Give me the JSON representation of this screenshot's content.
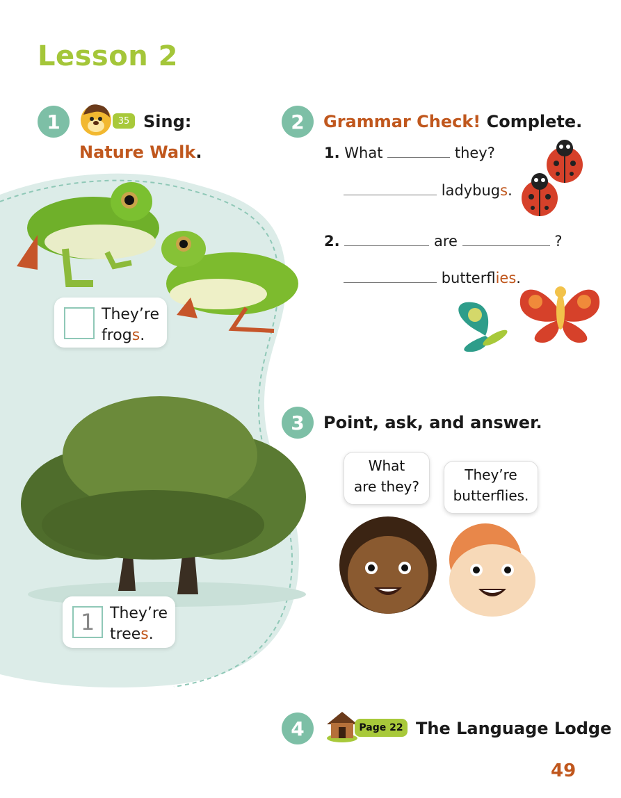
{
  "lesson_title": "Lesson 2",
  "ex1": {
    "number": "1",
    "track": "35",
    "label": "Sing:",
    "song_title": "Nature Walk",
    "period": ".",
    "cards": [
      {
        "answer": "",
        "line1": "They’re",
        "line2_base": "frog",
        "line2_suffix": "s",
        "line2_end": "."
      },
      {
        "answer": "1",
        "line1": "They’re",
        "line2_base": "tree",
        "line2_suffix": "s",
        "line2_end": "."
      }
    ]
  },
  "ex2": {
    "number": "2",
    "heading_orange": "Grammar Check!",
    "heading_black": "Complete.",
    "items": [
      {
        "num": "1.",
        "w1": "What",
        "w2": "they?",
        "w3_base": "ladybug",
        "w3_suffix": "s",
        "w3_end": "."
      },
      {
        "num": "2.",
        "w1": "are",
        "w2": "?",
        "w3_base": "butterfl",
        "w3_suffix": "ies",
        "w3_end": "."
      }
    ]
  },
  "ex3": {
    "number": "3",
    "heading": "Point, ask, and answer.",
    "bubble_left": [
      "What",
      "are they?"
    ],
    "bubble_right": [
      "They’re",
      "butterflies."
    ]
  },
  "ex4": {
    "number": "4",
    "page_badge": "Page 22",
    "heading": "The Language Lodge"
  },
  "page_number": "49",
  "colors": {
    "lesson_green": "#a4c639",
    "teal": "#7dbfa6",
    "orange": "#c0571d",
    "bg_teal": "#dcece8"
  }
}
